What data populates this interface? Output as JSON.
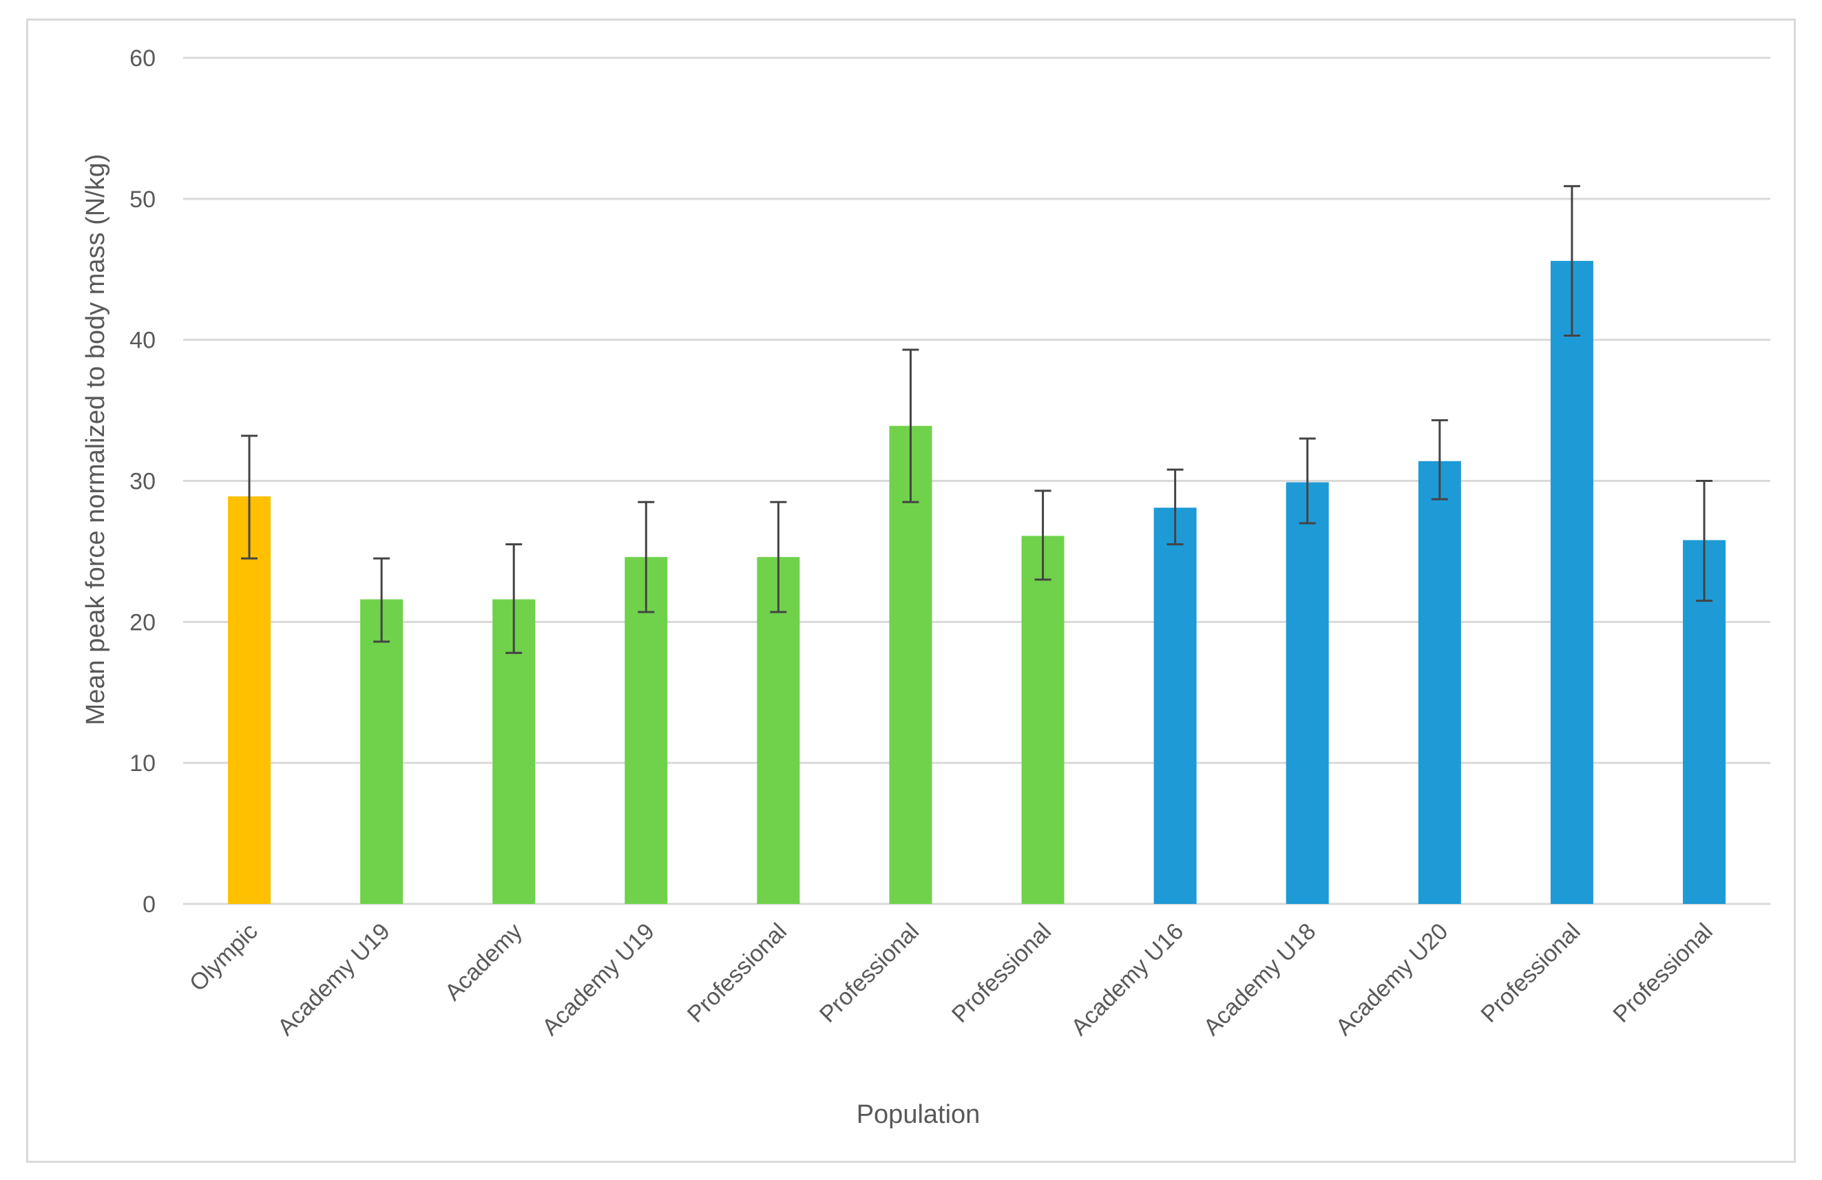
{
  "chart_data": {
    "type": "bar",
    "title": "",
    "xlabel": "Population",
    "ylabel": "Mean peak force normalized to body mass (N/kg)",
    "ylim": [
      0,
      60
    ],
    "yticks": [
      0,
      10,
      20,
      30,
      40,
      50,
      60
    ],
    "grid": true,
    "legend": "none",
    "categories": [
      "Olympic",
      "Academy U19",
      "Academy",
      "Academy U19",
      "Professional",
      "Professional",
      "Professional",
      "Academy U16",
      "Academy U18",
      "Academy U20",
      "Professional",
      "Professional"
    ],
    "values": [
      28.9,
      21.6,
      21.6,
      24.6,
      24.6,
      33.9,
      26.1,
      28.1,
      29.9,
      31.4,
      45.6,
      25.8
    ],
    "error_low": [
      24.5,
      18.6,
      17.8,
      20.7,
      20.7,
      28.5,
      23.0,
      25.5,
      27.0,
      28.7,
      40.3,
      21.5
    ],
    "error_high": [
      33.2,
      24.5,
      25.5,
      28.5,
      28.5,
      39.3,
      29.3,
      30.8,
      33.0,
      34.3,
      50.9,
      30.0
    ],
    "colors": [
      "#ffc000",
      "#6fd24a",
      "#6fd24a",
      "#6fd24a",
      "#6fd24a",
      "#6fd24a",
      "#6fd24a",
      "#1e9ad6",
      "#1e9ad6",
      "#1e9ad6",
      "#1e9ad6",
      "#1e9ad6"
    ]
  }
}
